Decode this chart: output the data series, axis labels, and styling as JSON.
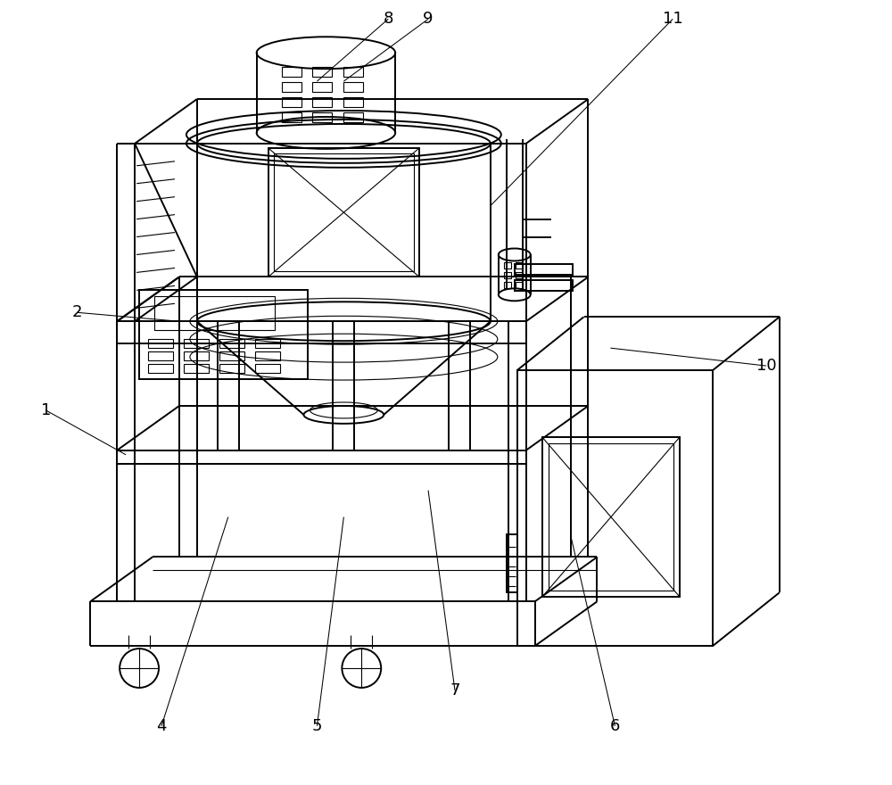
{
  "bg_color": "#ffffff",
  "lc": "#000000",
  "lw": 1.4,
  "tlw": 0.8,
  "annotation_font_size": 13
}
